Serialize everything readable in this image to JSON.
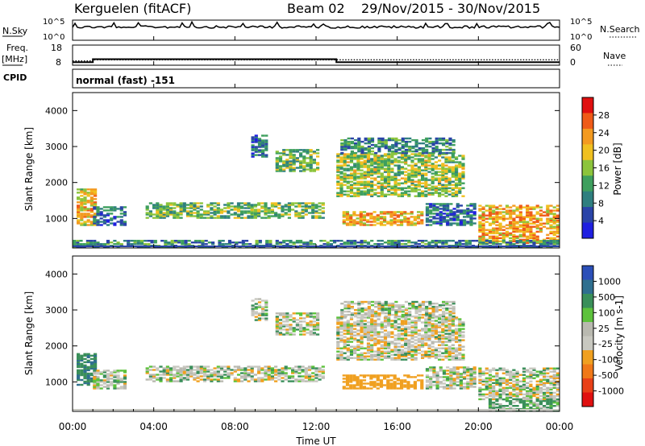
{
  "header": {
    "station": "Kerguelen (fitACF)",
    "beam": "Beam 02",
    "date_range": "29/Nov/2015 - 30/Nov/2015"
  },
  "side_labels": {
    "nsky": "N.Sky",
    "nsky_top": "10^5",
    "nsky_bottom": "10^0",
    "nsearch": "N.Search",
    "nsearch_top": "10^5",
    "nsearch_bottom": "10^0",
    "freq_line1": "Freq.",
    "freq_line2": "[MHz]",
    "freq_top": "18",
    "freq_bottom": "8",
    "nave": "Nave",
    "nave_top": "60",
    "nave_bottom": "0",
    "cpid": "CPID",
    "cpid_mode": "normal (fast) -151"
  },
  "colors": {
    "power_scale": [
      "#1f1fe0",
      "#2a44a8",
      "#2f7f7f",
      "#3e9f5e",
      "#8cc43c",
      "#f0c020",
      "#f39a20",
      "#ef5b18",
      "#e01010"
    ],
    "velocity_scale": [
      "#2b4fb8",
      "#2f6f8f",
      "#3a8f5a",
      "#5dc23c",
      "#b9b9b0",
      "#c8c8c0",
      "#f0a020",
      "#f07818",
      "#e84018",
      "#e01010"
    ],
    "line": "#000000"
  },
  "chart_data": [
    {
      "type": "heatmap",
      "name": "power",
      "ylabel": "Slant Range [km]",
      "ytick_labels": [
        "1000",
        "2000",
        "3000",
        "4000"
      ],
      "ylim": [
        180,
        4500
      ],
      "xlim_hours": [
        0,
        24
      ],
      "colorbar_label": "Power [dB]",
      "colorbar_ticks": [
        "4",
        "8",
        "12",
        "16",
        "20",
        "24",
        "28"
      ],
      "value_range": [
        0,
        32
      ],
      "regions": [
        {
          "t0": 0.2,
          "t1": 1.1,
          "r0": 800,
          "r1": 1800,
          "v": 20
        },
        {
          "t0": 1.0,
          "t1": 2.6,
          "r0": 800,
          "r1": 1300,
          "v": 8
        },
        {
          "t0": 3.6,
          "t1": 12.3,
          "r0": 1000,
          "r1": 1450,
          "v": 14
        },
        {
          "t0": 8.8,
          "t1": 9.6,
          "r0": 2700,
          "r1": 3300,
          "v": 8
        },
        {
          "t0": 10.0,
          "t1": 12.0,
          "r0": 2300,
          "r1": 2900,
          "v": 14
        },
        {
          "t0": 13.0,
          "t1": 19.3,
          "r0": 1600,
          "r1": 2800,
          "v": 16
        },
        {
          "t0": 13.2,
          "t1": 18.8,
          "r0": 2800,
          "r1": 3250,
          "v": 10
        },
        {
          "t0": 13.3,
          "t1": 17.3,
          "r0": 800,
          "r1": 1200,
          "v": 22
        },
        {
          "t0": 17.4,
          "t1": 19.9,
          "r0": 800,
          "r1": 1400,
          "v": 8
        },
        {
          "t0": 20.0,
          "t1": 24.0,
          "r0": 300,
          "r1": 1350,
          "v": 22
        },
        {
          "t0": 0.0,
          "t1": 24.0,
          "r0": 180,
          "r1": 400,
          "v": 10
        }
      ]
    },
    {
      "type": "heatmap",
      "name": "velocity",
      "xlabel": "Time UT",
      "xtick_labels": [
        "00:00",
        "04:00",
        "08:00",
        "12:00",
        "16:00",
        "20:00",
        "00:00"
      ],
      "ylabel": "Slant Range [km]",
      "ytick_labels": [
        "1000",
        "2000",
        "3000",
        "4000"
      ],
      "ylim": [
        180,
        4500
      ],
      "xlim_hours": [
        0,
        24
      ],
      "colorbar_label": "Velocity [m s-1]",
      "colorbar_ticks": [
        "1000",
        "500",
        "100",
        "25",
        "-25",
        "-100",
        "-500",
        "-1000"
      ],
      "value_range": [
        -1200,
        1200
      ],
      "regions": [
        {
          "t0": 0.2,
          "t1": 1.1,
          "r0": 900,
          "r1": 1800,
          "v": 450
        },
        {
          "t0": 1.0,
          "t1": 2.6,
          "r0": 800,
          "r1": 1300,
          "v": 0
        },
        {
          "t0": 3.6,
          "t1": 12.3,
          "r0": 1000,
          "r1": 1450,
          "v": 0
        },
        {
          "t0": 8.8,
          "t1": 9.6,
          "r0": 2700,
          "r1": 3300,
          "v": 10
        },
        {
          "t0": 10.0,
          "t1": 12.0,
          "r0": 2300,
          "r1": 2900,
          "v": 0
        },
        {
          "t0": 13.0,
          "t1": 19.3,
          "r0": 1600,
          "r1": 2800,
          "v": -20
        },
        {
          "t0": 13.2,
          "t1": 18.8,
          "r0": 2800,
          "r1": 3250,
          "v": 0
        },
        {
          "t0": 13.3,
          "t1": 17.3,
          "r0": 800,
          "r1": 1200,
          "v": -300
        },
        {
          "t0": 17.4,
          "t1": 19.9,
          "r0": 800,
          "r1": 1400,
          "v": 0
        },
        {
          "t0": 20.0,
          "t1": 24.0,
          "r0": 500,
          "r1": 1400,
          "v": 0
        },
        {
          "t0": 20.5,
          "t1": 24.0,
          "r0": 180,
          "r1": 500,
          "v": 150
        }
      ]
    }
  ],
  "time_series": {
    "freq_mhz": [
      {
        "t0": 0,
        "t1": 1.0,
        "v": 9.5
      },
      {
        "t0": 1.0,
        "t1": 13.0,
        "v": 11.0
      },
      {
        "t0": 13.0,
        "t1": 24.0,
        "v": 9.5
      }
    ],
    "nave": [
      {
        "t0": 0,
        "t1": 1.0,
        "v": 13
      },
      {
        "t0": 1.0,
        "t1": 24.0,
        "v": 16
      }
    ]
  }
}
